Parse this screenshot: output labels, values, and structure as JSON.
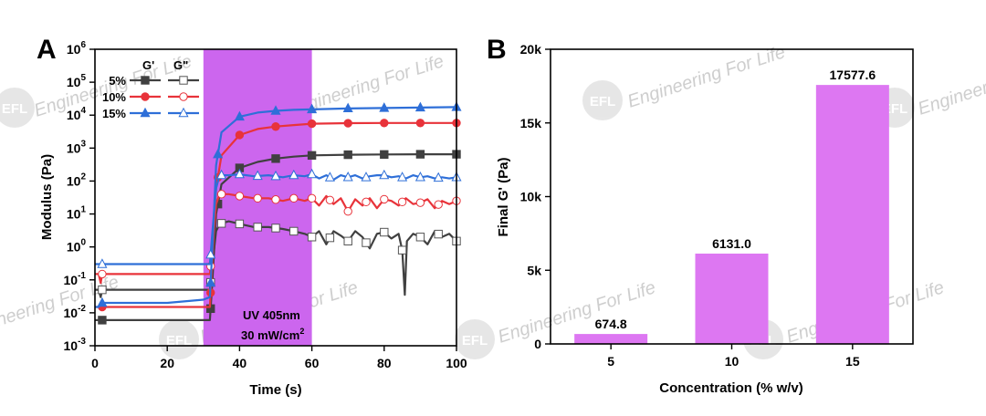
{
  "figure": {
    "panel_a_label": "A",
    "panel_b_label": "B",
    "watermark_text": "Engineering For Life",
    "watermark_logo": "EFL"
  },
  "colors": {
    "uv_band": "#cc66ee",
    "bar_fill": "#dd77f2",
    "series_5": "#404040",
    "series_10": "#e8333a",
    "series_15": "#2e6fd8"
  },
  "chart_data": [
    {
      "type": "line",
      "panel": "A",
      "title": "",
      "xlabel": "Time (s)",
      "ylabel": "Modulus (Pa)",
      "xlim": [
        0,
        100
      ],
      "ylim_exponents": [
        -3,
        6
      ],
      "yscale": "log",
      "x_ticks": [
        0,
        20,
        40,
        60,
        80,
        100
      ],
      "y_tick_base": "10",
      "y_tick_exponents": [
        "-3",
        "-2",
        "-1",
        "0",
        "1",
        "2",
        "3",
        "4",
        "5",
        "6"
      ],
      "uv_window": [
        30,
        60
      ],
      "annotation_line1": "UV 405nm",
      "annotation_line2_main": "30 mW/cm",
      "annotation_line2_sup": "2",
      "legend": {
        "header_storage": "G'",
        "header_loss": "G\"",
        "entries": [
          "5%",
          "10%",
          "15%"
        ]
      },
      "series": [
        {
          "name": "5% G'",
          "color": "#404040",
          "marker": "filled-square",
          "points": [
            [
              0,
              0.006
            ],
            [
              2,
              0.006
            ],
            [
              30,
              0.006
            ],
            [
              31.8,
              0.006
            ],
            [
              32.5,
              0.1
            ],
            [
              33.5,
              10
            ],
            [
              35,
              80
            ],
            [
              40,
              250
            ],
            [
              45,
              380
            ],
            [
              50,
              480
            ],
            [
              55,
              550
            ],
            [
              60,
              600
            ],
            [
              70,
              630
            ],
            [
              80,
              640
            ],
            [
              90,
              650
            ],
            [
              100,
              650
            ]
          ]
        },
        {
          "name": "5% G\"",
          "color": "#404040",
          "marker": "open-square",
          "points": [
            [
              0,
              0.05
            ],
            [
              1,
              0.05
            ],
            [
              1.6,
              0.03
            ],
            [
              2,
              0.05
            ],
            [
              30,
              0.05
            ],
            [
              31.8,
              0.05
            ],
            [
              32.5,
              0.3
            ],
            [
              33.5,
              3
            ],
            [
              34.5,
              5
            ],
            [
              37,
              6
            ],
            [
              40,
              5
            ],
            [
              44,
              4
            ],
            [
              48,
              4
            ],
            [
              52,
              3.5
            ],
            [
              55,
              3
            ],
            [
              58,
              2.5
            ],
            [
              60,
              2
            ],
            [
              62,
              3
            ],
            [
              64,
              1.2
            ],
            [
              66,
              3
            ],
            [
              68,
              2.2
            ],
            [
              70,
              1.5
            ],
            [
              72,
              3
            ],
            [
              74,
              2
            ],
            [
              76,
              0.9
            ],
            [
              78,
              2.5
            ],
            [
              80,
              2.8
            ],
            [
              82,
              1.8
            ],
            [
              84,
              2.5
            ],
            [
              85,
              0.8
            ],
            [
              85.7,
              0.035
            ],
            [
              86.3,
              1.5
            ],
            [
              88,
              2.5
            ],
            [
              90,
              2
            ],
            [
              92,
              1.2
            ],
            [
              94,
              3
            ],
            [
              96,
              2
            ],
            [
              98,
              2.5
            ],
            [
              100,
              1.5
            ]
          ]
        },
        {
          "name": "10% G'",
          "color": "#e8333a",
          "marker": "filled-circle",
          "points": [
            [
              0,
              0.015
            ],
            [
              2,
              0.015
            ],
            [
              30,
              0.015
            ],
            [
              31.8,
              0.015
            ],
            [
              32.5,
              0.5
            ],
            [
              33.5,
              60
            ],
            [
              35,
              600
            ],
            [
              40,
              2500
            ],
            [
              45,
              3800
            ],
            [
              50,
              4500
            ],
            [
              55,
              5000
            ],
            [
              60,
              5500
            ],
            [
              70,
              5700
            ],
            [
              80,
              5800
            ],
            [
              90,
              5800
            ],
            [
              100,
              5800
            ]
          ]
        },
        {
          "name": "10% G\"",
          "color": "#e8333a",
          "marker": "open-circle",
          "points": [
            [
              0,
              0.15
            ],
            [
              1,
              0.15
            ],
            [
              1.6,
              0.08
            ],
            [
              2,
              0.15
            ],
            [
              30,
              0.15
            ],
            [
              31.8,
              0.15
            ],
            [
              32.5,
              1
            ],
            [
              33.5,
              20
            ],
            [
              34.5,
              40
            ],
            [
              37,
              40
            ],
            [
              40,
              35
            ],
            [
              44,
              30
            ],
            [
              48,
              30
            ],
            [
              52,
              25
            ],
            [
              55,
              30
            ],
            [
              58,
              25
            ],
            [
              60,
              30
            ],
            [
              62,
              18
            ],
            [
              64,
              35
            ],
            [
              66,
              20
            ],
            [
              68,
              30
            ],
            [
              70,
              12
            ],
            [
              72,
              28
            ],
            [
              74,
              18
            ],
            [
              76,
              30
            ],
            [
              78,
              15
            ],
            [
              80,
              28
            ],
            [
              82,
              25
            ],
            [
              84,
              18
            ],
            [
              86,
              30
            ],
            [
              88,
              20
            ],
            [
              90,
              22
            ],
            [
              92,
              28
            ],
            [
              94,
              15
            ],
            [
              96,
              25
            ],
            [
              98,
              20
            ],
            [
              100,
              25
            ]
          ]
        },
        {
          "name": "15% G'",
          "color": "#2e6fd8",
          "marker": "filled-triangle",
          "points": [
            [
              0,
              0.015
            ],
            [
              1,
              0.015
            ],
            [
              2,
              0.02
            ],
            [
              10,
              0.02
            ],
            [
              20,
              0.02
            ],
            [
              30,
              0.025
            ],
            [
              31.8,
              0.03
            ],
            [
              32.5,
              1
            ],
            [
              33.5,
              300
            ],
            [
              35,
              3000
            ],
            [
              40,
              9000
            ],
            [
              45,
              12000
            ],
            [
              50,
              13500
            ],
            [
              55,
              14500
            ],
            [
              60,
              15000
            ],
            [
              70,
              16000
            ],
            [
              80,
              16500
            ],
            [
              90,
              17000
            ],
            [
              100,
              17500
            ]
          ]
        },
        {
          "name": "15% G\"",
          "color": "#2e6fd8",
          "marker": "open-triangle",
          "points": [
            [
              0,
              0.3
            ],
            [
              2,
              0.3
            ],
            [
              30,
              0.3
            ],
            [
              31.8,
              0.3
            ],
            [
              32.5,
              3
            ],
            [
              33.5,
              60
            ],
            [
              34.5,
              150
            ],
            [
              37,
              150
            ],
            [
              40,
              160
            ],
            [
              44,
              140
            ],
            [
              48,
              150
            ],
            [
              52,
              130
            ],
            [
              55,
              150
            ],
            [
              58,
              140
            ],
            [
              60,
              160
            ],
            [
              62,
              120
            ],
            [
              64,
              150
            ],
            [
              66,
              110
            ],
            [
              68,
              150
            ],
            [
              70,
              130
            ],
            [
              72,
              150
            ],
            [
              74,
              120
            ],
            [
              76,
              140
            ],
            [
              78,
              150
            ],
            [
              80,
              150
            ],
            [
              82,
              130
            ],
            [
              84,
              140
            ],
            [
              86,
              120
            ],
            [
              88,
              150
            ],
            [
              90,
              130
            ],
            [
              92,
              140
            ],
            [
              94,
              120
            ],
            [
              96,
              130
            ],
            [
              98,
              120
            ],
            [
              100,
              130
            ]
          ]
        }
      ]
    },
    {
      "type": "bar",
      "panel": "B",
      "title": "",
      "xlabel": "Concentration (% w/v)",
      "ylabel": "Final G' (Pa)",
      "ylim": [
        0,
        20000
      ],
      "y_ticks": [
        0,
        5000,
        10000,
        15000,
        20000
      ],
      "y_tick_labels": [
        "0",
        "5k",
        "10k",
        "15k",
        "20k"
      ],
      "categories": [
        "5",
        "10",
        "15"
      ],
      "values": [
        674.8,
        6131.0,
        17577.6
      ],
      "value_labels": [
        "674.8",
        "6131.0",
        "17577.6"
      ]
    }
  ]
}
